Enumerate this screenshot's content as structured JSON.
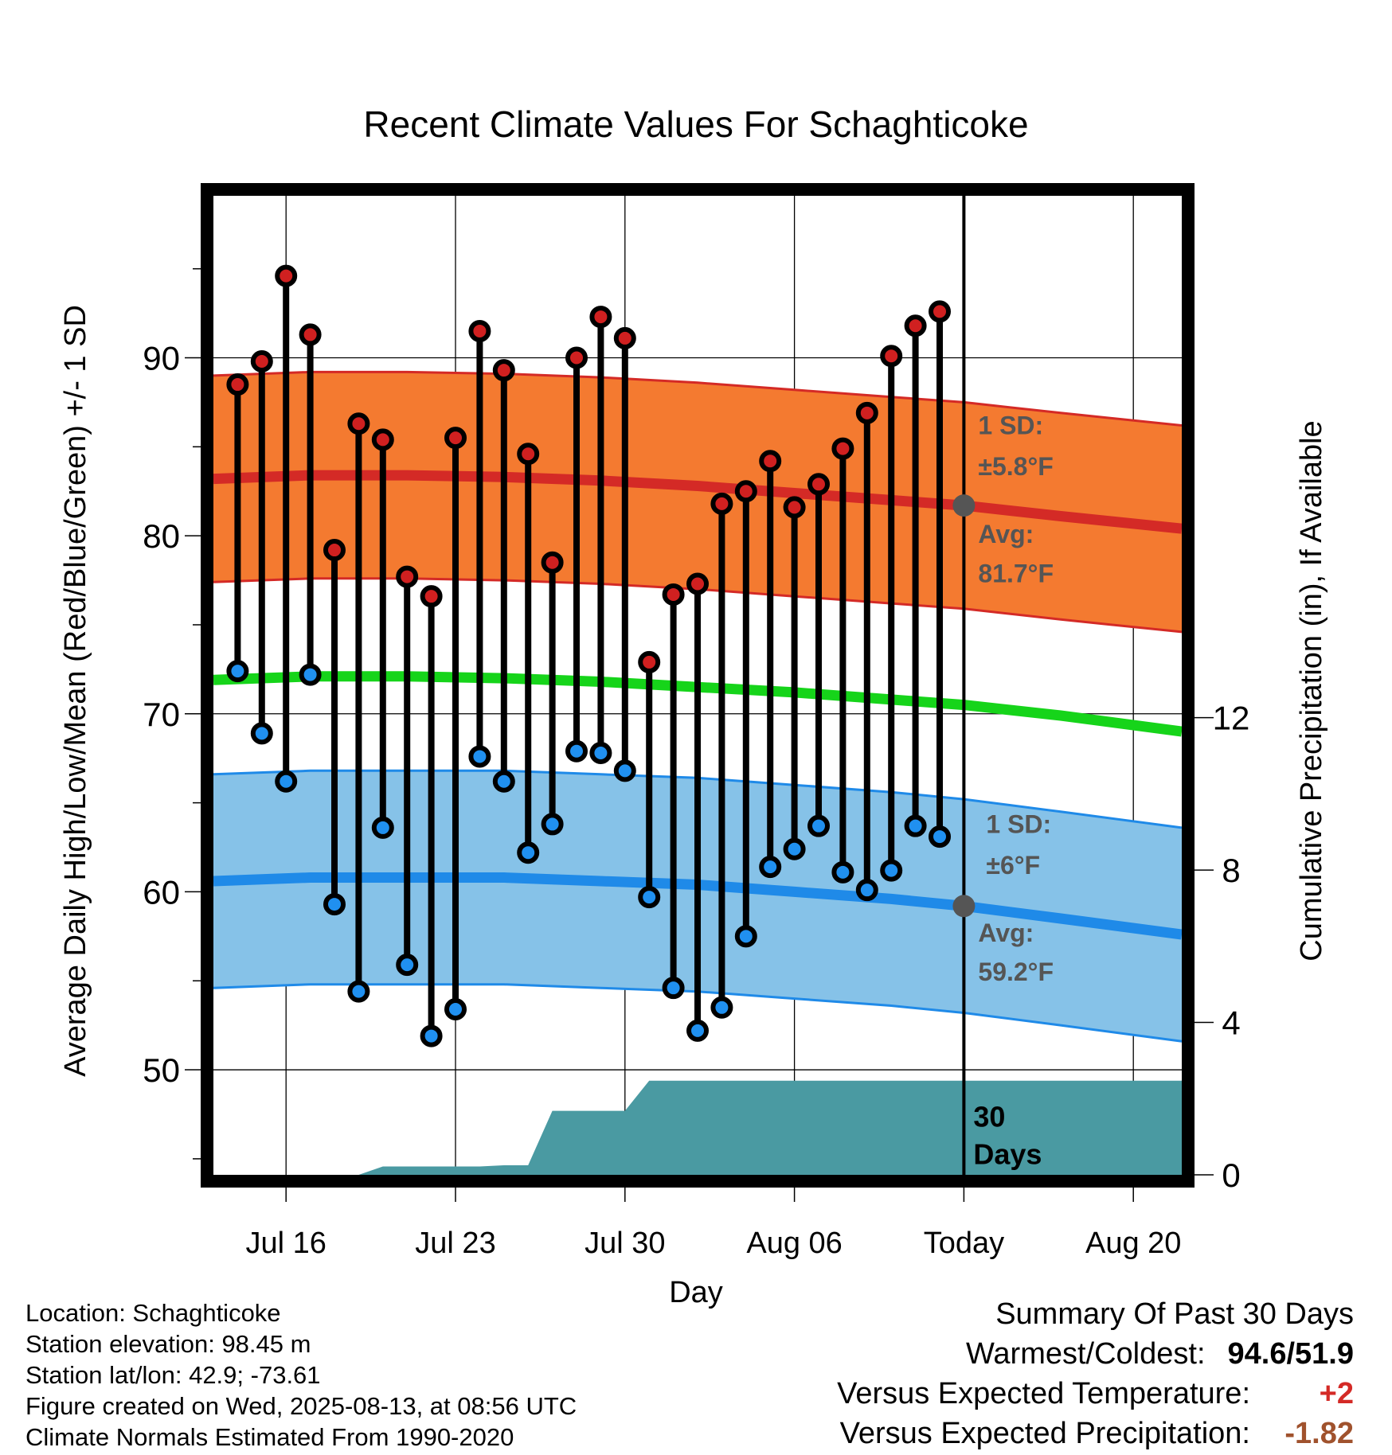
{
  "chart_data": {
    "type": "line",
    "title": "Recent Climate Values For Schaghticoke",
    "xlabel": "Day",
    "ylabel": "Average Daily High/Low/Mean (Red/Blue/Green) +/- 1 SD",
    "y2label": "Cumulative Precipitation (in), If Available",
    "ylim": [
      44.1,
      99.1
    ],
    "yticks": [
      50,
      60,
      70,
      80,
      90
    ],
    "y2lim": [
      0,
      25.7
    ],
    "y2ticks": [
      0,
      4,
      8,
      12
    ],
    "x_start": "Jul 13",
    "x_end": "Aug 22",
    "x_tick_labels": [
      {
        "day": "Jul 16",
        "label": "Jul 16"
      },
      {
        "day": "Jul 23",
        "label": "Jul 23"
      },
      {
        "day": "Jul 30",
        "label": "Jul 30"
      },
      {
        "day": "Aug 06",
        "label": "Aug 06"
      },
      {
        "day": "Aug 13",
        "label": "Today"
      },
      {
        "day": "Aug 20",
        "label": "Aug 20"
      }
    ],
    "today": "Aug 13",
    "grid": true,
    "days": [
      "Jul 14",
      "Jul 15",
      "Jul 16",
      "Jul 17",
      "Jul 18",
      "Jul 19",
      "Jul 20",
      "Jul 21",
      "Jul 22",
      "Jul 23",
      "Jul 24",
      "Jul 25",
      "Jul 26",
      "Jul 27",
      "Jul 28",
      "Jul 29",
      "Jul 30",
      "Jul 31",
      "Aug 01",
      "Aug 02",
      "Aug 03",
      "Aug 04",
      "Aug 05",
      "Aug 06",
      "Aug 07",
      "Aug 08",
      "Aug 09",
      "Aug 10",
      "Aug 11",
      "Aug 12"
    ],
    "highs": [
      88.5,
      89.8,
      94.6,
      91.3,
      79.2,
      86.3,
      85.4,
      77.7,
      76.6,
      85.5,
      91.5,
      89.3,
      84.6,
      78.5,
      90.0,
      92.3,
      91.1,
      72.9,
      76.7,
      77.3,
      81.8,
      82.5,
      84.2,
      81.6,
      82.9,
      84.9,
      86.9,
      90.1,
      91.8,
      92.6
    ],
    "lows": [
      72.4,
      68.9,
      66.2,
      72.2,
      59.3,
      54.4,
      63.6,
      55.9,
      51.9,
      53.4,
      67.6,
      66.2,
      62.2,
      63.8,
      67.9,
      67.8,
      66.8,
      59.7,
      54.6,
      52.2,
      53.5,
      57.5,
      61.4,
      62.4,
      63.7,
      61.1,
      60.1,
      61.2,
      63.7,
      63.1
    ],
    "normals": {
      "days": [
        "Jul 13",
        "Jul 17",
        "Jul 21",
        "Jul 25",
        "Jul 29",
        "Aug 02",
        "Aug 06",
        "Aug 10",
        "Aug 13",
        "Aug 17",
        "Aug 22"
      ],
      "high_mean": [
        83.2,
        83.4,
        83.4,
        83.3,
        83.1,
        82.8,
        82.4,
        82.0,
        81.7,
        81.1,
        80.4
      ],
      "high_sd": 5.8,
      "low_mean": [
        60.6,
        60.8,
        60.8,
        60.8,
        60.6,
        60.4,
        60.0,
        59.6,
        59.2,
        58.5,
        57.6
      ],
      "low_sd": 6,
      "mean": [
        71.9,
        72.1,
        72.1,
        72.0,
        71.8,
        71.5,
        71.2,
        70.8,
        70.5,
        69.9,
        69.0
      ]
    },
    "precip_cumulative": {
      "days": [
        "Jul 13",
        "Jul 19",
        "Jul 20",
        "Jul 21",
        "Jul 22",
        "Jul 23",
        "Jul 24",
        "Jul 25",
        "Jul 26",
        "Jul 27",
        "Jul 28",
        "Jul 29",
        "Jul 30",
        "Jul 31",
        "Aug 13",
        "Aug 22"
      ],
      "values": [
        0,
        0,
        0.22,
        0.22,
        0.22,
        0.22,
        0.22,
        0.25,
        0.25,
        1.68,
        1.68,
        1.68,
        1.68,
        2.47,
        2.47,
        2.47
      ]
    },
    "annotations": {
      "high_sd_label": "1 SD:",
      "high_sd_value": "±5.8°F",
      "high_avg_label": "Avg:",
      "high_avg_value": "81.7°F",
      "low_sd_label": "1 SD:",
      "low_sd_value": "±6°F",
      "low_avg_label": "Avg:",
      "low_avg_value": "59.2°F",
      "days_count": "30",
      "days_word": "Days"
    },
    "colors": {
      "high_band": "#f47a30",
      "high_line": "#d42a26",
      "low_band": "#86c2e8",
      "low_line": "#1f8ae8",
      "mean_line": "#16d41a",
      "precip": "#4a9aa2",
      "high_marker": "#d02020",
      "low_marker": "#2090f0",
      "annotation": "#555555"
    }
  },
  "info": {
    "location": "Location: Schaghticoke",
    "elevation": "Station elevation: 98.45 m",
    "latlon": "Station lat/lon: 42.9; -73.61",
    "created": "Figure created on Wed, 2025-08-13, at 08:56 UTC",
    "normals": "Climate Normals Estimated From 1990-2020"
  },
  "summary": {
    "title": "Summary Of Past 30 Days",
    "warmest_label": "Warmest/Coldest:",
    "warmest_value": "94.6/51.9",
    "temp_label": "Versus Expected Temperature:",
    "temp_value": "+2",
    "temp_color": "#d42a26",
    "precip_label": "Versus Expected Precipitation:",
    "precip_value": "-1.82",
    "precip_color": "#a0522d"
  }
}
